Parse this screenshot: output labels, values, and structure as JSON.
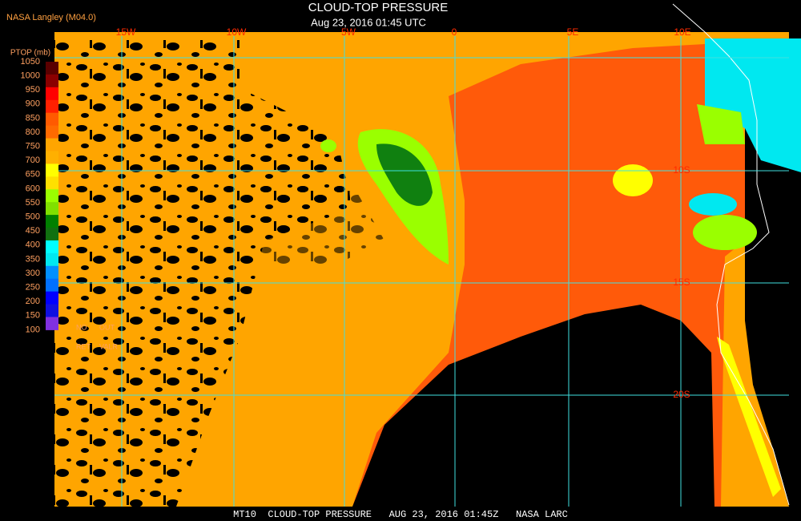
{
  "header": {
    "source": "NASA Langley (M04.0)",
    "title": "CLOUD-TOP PRESSURE",
    "subtitle": "Aug 23, 2016 01:45 UTC"
  },
  "map": {
    "lon_labels": [
      "15W",
      "10W",
      "5W",
      "0",
      "5E",
      "10E"
    ],
    "lat_labels": [
      "10S",
      "15S",
      "20S"
    ]
  },
  "legend": {
    "title": "PTOP (mb)",
    "ticks": [
      1050,
      1000,
      950,
      900,
      850,
      800,
      750,
      700,
      650,
      600,
      550,
      500,
      450,
      400,
      350,
      300,
      250,
      200,
      150,
      100
    ],
    "colors": [
      "#5a0000",
      "#8a0000",
      "#ff0000",
      "#ff2000",
      "#ff5a00",
      "#ff6a00",
      "#ffa500",
      "#ffb000",
      "#ffff00",
      "#ffe000",
      "#9aff00",
      "#80e000",
      "#008000",
      "#107010",
      "#00ffff",
      "#00e8f0",
      "#0090ff",
      "#0070ff",
      "#0000ff",
      "#1010e0",
      "#8030e0"
    ],
    "notes": [
      "NO",
      "OUT",
      "RET",
      "VALR"
    ]
  },
  "footer": {
    "text": "MT10  CLOUD-TOP PRESSURE   AUG 23, 2016 01:45Z   NASA LARC"
  }
}
